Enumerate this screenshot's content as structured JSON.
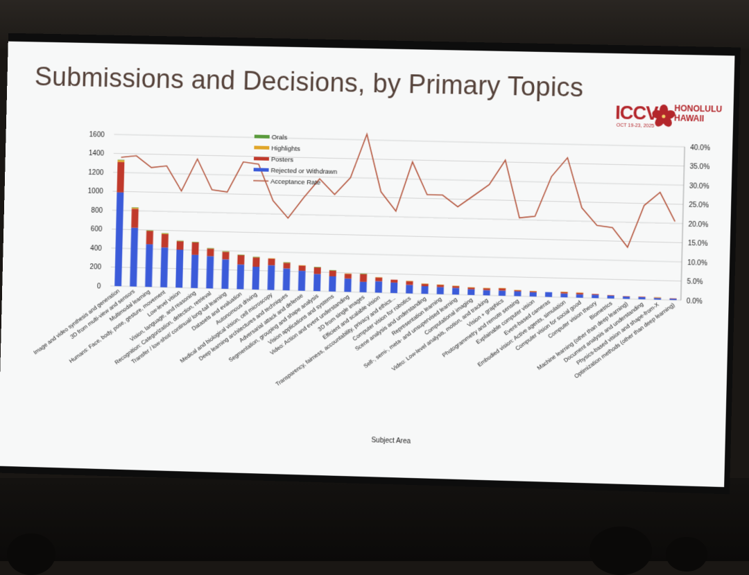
{
  "slide": {
    "title": "Submissions and Decisions, by Primary Topics"
  },
  "logo": {
    "name": "ICCV",
    "dates": "OCT 19-23, 2025",
    "city_line1": "HONOLULU",
    "city_line2": "HAWAII"
  },
  "colors": {
    "orals": "#5a9b3c",
    "highlights": "#e0a62a",
    "posters": "#c0392b",
    "rejected": "#3b5bd9",
    "acceptance": "#b5573f"
  },
  "chart_data": {
    "type": "bar",
    "stacked": true,
    "xlabel": "Subject Area",
    "ylim": [
      0,
      1600
    ],
    "y_ticks": [
      "0",
      "200",
      "400",
      "600",
      "800",
      "1000",
      "1200",
      "1400",
      "1600"
    ],
    "y2lim": [
      0,
      0.4
    ],
    "y2_ticks": [
      "0.0%",
      "5.0%",
      "10.0%",
      "15.0%",
      "20.0%",
      "25.0%",
      "30.0%",
      "35.0%",
      "40.0%"
    ],
    "grid": true,
    "legend_position": "top-left-inside",
    "legend": [
      "Orals",
      "Highlights",
      "Posters",
      "Rejected or Withdrawn",
      "Acceptance Rate"
    ],
    "categories": [
      "Image and video synthesis and generation",
      "3D from multi-view and sensors",
      "Multimodal learning",
      "Humans: Face, body, pose, gesture, movement",
      "Low-level vision",
      "Vision, language, and reasoning",
      "Recognition: Categorization, detection, retrieval",
      "Transfer / low-shot/ continual/ long-tail learning",
      "Datasets and evaluation",
      "Autonomous driving",
      "Medical and biological vision, cell microscopy",
      "Deep learning architectures and techniques",
      "Adversarial attack and defense",
      "Segmentation, grouping and shape analysis",
      "Vision applications and systems",
      "Video: Action and event understanding",
      "3D from single images",
      "Efficient and scalable vision",
      "Transparency, fairness, accountability, privacy and ethics...",
      "Computer vision for robotics",
      "Scene analysis and understanding",
      "Representation learning",
      "Self-, semi-, meta- and unsupervised learning",
      "Computational imaging",
      "Video: Low-level analysis, motion, and tracking",
      "Vision + graphics",
      "Photogrammetry and remote sensing",
      "Explainable computer vision",
      "Event-based cameras",
      "Embodied vision: Active agents, simulation",
      "Computer vision for social good",
      "Computer vision theory",
      "Biometrics",
      "Machine learning (other than deep learning)",
      "Document analysis and understanding",
      "Physics-based vision and shape-from-X",
      "Optimization methods (other than deep learning)"
    ],
    "series": [
      {
        "name": "Rejected or Withdrawn",
        "values": [
          990,
          620,
          450,
          420,
          400,
          350,
          340,
          310,
          260,
          240,
          260,
          230,
          210,
          180,
          160,
          140,
          110,
          120,
          110,
          90,
          80,
          75,
          70,
          60,
          55,
          55,
          50,
          45,
          50,
          40,
          35,
          35,
          30,
          25,
          22,
          18,
          15
        ]
      },
      {
        "name": "Posters",
        "values": [
          320,
          200,
          140,
          140,
          90,
          130,
          80,
          80,
          100,
          100,
          70,
          60,
          55,
          70,
          60,
          50,
          80,
          40,
          30,
          40,
          25,
          25,
          20,
          20,
          20,
          25,
          12,
          12,
          0,
          17,
          17,
          8,
          5,
          3,
          5,
          5,
          2
        ]
      },
      {
        "name": "Highlights",
        "values": [
          20,
          12,
          6,
          8,
          5,
          5,
          3,
          4,
          3,
          3,
          2,
          3,
          2,
          3,
          2,
          2,
          4,
          2,
          0,
          2,
          1,
          1,
          1,
          1,
          1,
          1,
          1,
          1,
          0,
          1,
          1,
          0,
          0,
          0,
          0,
          1,
          0
        ]
      },
      {
        "name": "Orals",
        "values": [
          4,
          2,
          1,
          2,
          1,
          1,
          1,
          1,
          1,
          1,
          0,
          1,
          0,
          1,
          1,
          0,
          1,
          0,
          0,
          0,
          0,
          0,
          0,
          0,
          0,
          0,
          0,
          0,
          0,
          0,
          0,
          0,
          0,
          0,
          0,
          0,
          0
        ]
      },
      {
        "name": "Acceptance Rate",
        "axis": "right",
        "values": [
          0.34,
          0.345,
          0.315,
          0.32,
          0.255,
          0.34,
          0.26,
          0.255,
          0.335,
          0.33,
          0.235,
          0.19,
          0.245,
          0.295,
          0.255,
          0.3,
          0.415,
          0.265,
          0.215,
          0.345,
          0.26,
          0.26,
          0.23,
          0.26,
          0.29,
          0.355,
          0.205,
          0.21,
          0.315,
          0.365,
          0.235,
          0.19,
          0.185,
          0.135,
          0.245,
          0.28,
          0.205
        ]
      }
    ]
  }
}
